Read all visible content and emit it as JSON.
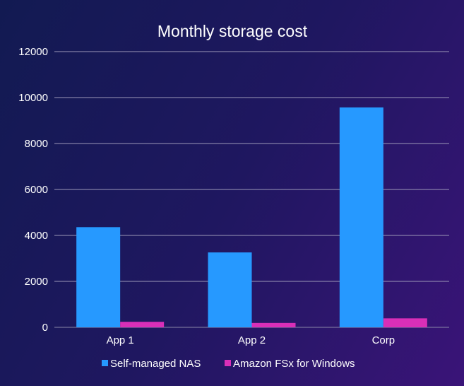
{
  "chart_data": {
    "type": "bar",
    "title": "Monthly storage cost",
    "categories": [
      "App 1",
      "App 2",
      "Corp"
    ],
    "series": [
      {
        "name": "Self-managed NAS",
        "color": "#2699ff",
        "values": [
          4360,
          3260,
          9570
        ]
      },
      {
        "name": "Amazon FSx for Windows",
        "color": "#d92fb8",
        "values": [
          240,
          190,
          390
        ]
      }
    ],
    "ylim": [
      0,
      12000
    ],
    "yticks": [
      "0",
      "2000",
      "4000",
      "6000",
      "8000",
      "10000",
      "12000"
    ],
    "grid": true,
    "legend": "bottom"
  }
}
